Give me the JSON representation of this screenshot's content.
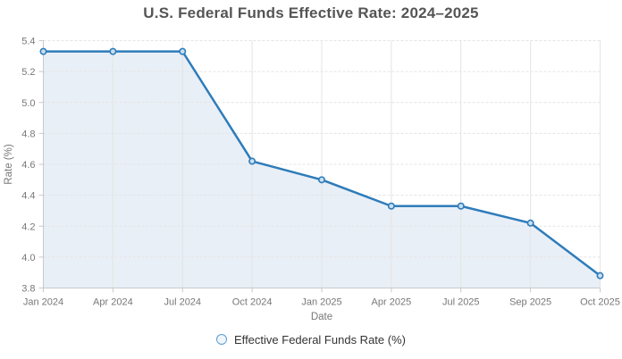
{
  "colors": {
    "line": "#2e7cba",
    "area": "#e9eff7",
    "marker_fill": "#c9dff1",
    "grid": "#e4e4e4",
    "axis_line": "#c9c9c9",
    "axis_text": "#777777",
    "title_text": "#555555",
    "legend_text": "#333333",
    "legend_ring": "#5b9bd0",
    "legend_fill": "#eef6fc"
  },
  "chart_data": {
    "type": "area",
    "title": "U.S. Federal Funds Effective Rate: 2024–2025",
    "categories": [
      "Jan 2024",
      "Apr 2024",
      "Jul 2024",
      "Oct 2024",
      "Jan 2025",
      "Apr 2025",
      "Jul 2025",
      "Sep 2025",
      "Oct 2025"
    ],
    "series": [
      {
        "name": "Effective Federal Funds Rate (%)",
        "values": [
          5.33,
          5.33,
          5.33,
          4.62,
          4.5,
          4.33,
          4.33,
          4.22,
          3.88
        ]
      }
    ],
    "xlabel": "Date",
    "ylabel": "Rate (%)",
    "ylim": [
      3.8,
      5.4
    ],
    "y_ticks": [
      "5.4",
      "5.2",
      "5.0",
      "4.8",
      "4.6",
      "4.4",
      "4.2",
      "4.0",
      "3.8"
    ],
    "grid": true,
    "legend_position": "bottom",
    "marker": "circle-open"
  }
}
